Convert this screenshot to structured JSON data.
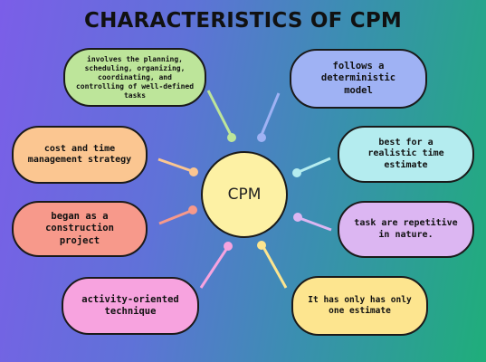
{
  "title": "CHARACTERISTICS OF CPM",
  "center": "CPM",
  "items": [
    {
      "text": "involves the planning, scheduling, organizing, coordinating, and controlling of well-defined tasks",
      "color": "#bde59a",
      "dot": "#bde59a"
    },
    {
      "text": "cost and time management strategy",
      "color": "#fbc691",
      "dot": "#fbc691"
    },
    {
      "text": "began as a construction project",
      "color": "#f7998b",
      "dot": "#f7998b"
    },
    {
      "text": "activity-oriented technique",
      "color": "#f7a3df",
      "dot": "#f7a3df"
    },
    {
      "text": "follows a deterministic model",
      "color": "#9fb2f4",
      "dot": "#9fb2f4"
    },
    {
      "text": "best for a realistic time estimate",
      "color": "#b4ecef",
      "dot": "#b4ecef"
    },
    {
      "text": "task are repetitive in nature.",
      "color": "#dcb6f2",
      "dot": "#dcb6f2"
    },
    {
      "text": "It has only has only one estimate",
      "color": "#fde58f",
      "dot": "#fde58f"
    }
  ]
}
